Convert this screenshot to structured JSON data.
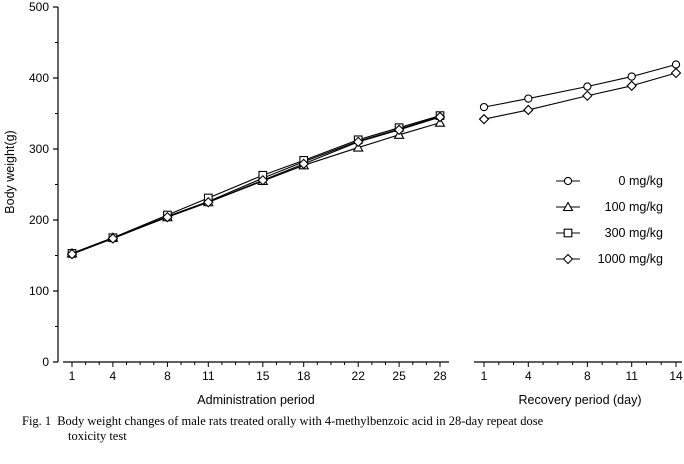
{
  "chart_data": {
    "type": "line",
    "ylabel": "Body weight(g)",
    "ylim": [
      0,
      500
    ],
    "yticks": [
      "0",
      "100",
      "200",
      "300",
      "400",
      "500"
    ],
    "grid": false,
    "legend_position": "right",
    "panels": [
      {
        "name": "administration",
        "xlabel": "Administration period",
        "x": [
          1,
          4,
          8,
          11,
          15,
          18,
          22,
          25,
          28
        ],
        "xticks": [
          "1",
          "4",
          "8",
          "11",
          "15",
          "18",
          "22",
          "25",
          "28"
        ],
        "xlim": [
          1,
          28
        ],
        "series": [
          {
            "name": "0 mg/kg",
            "marker": "circle",
            "values": [
              152,
              174,
              205,
              226,
              259,
              282,
              311,
              328,
              346
            ]
          },
          {
            "name": "100 mg/kg",
            "marker": "triangle",
            "values": [
              153,
              175,
              204,
              225,
              255,
              277,
              302,
              320,
              337
            ]
          },
          {
            "name": "300 mg/kg",
            "marker": "square",
            "values": [
              153,
              175,
              207,
              231,
              263,
              284,
              313,
              330,
              347
            ]
          },
          {
            "name": "1000 mg/kg",
            "marker": "diamond",
            "values": [
              152,
              174,
              204,
              225,
              256,
              279,
              310,
              327,
              345
            ]
          }
        ]
      },
      {
        "name": "recovery",
        "xlabel": "Recovery period (day)",
        "x": [
          1,
          4,
          8,
          11,
          14
        ],
        "xticks": [
          "1",
          "4",
          "8",
          "11",
          "14"
        ],
        "xlim": [
          1,
          14
        ],
        "series": [
          {
            "name": "0 mg/kg",
            "marker": "circle",
            "values": [
              359,
              371,
              388,
              402,
              419
            ]
          },
          {
            "name": "1000 mg/kg",
            "marker": "diamond",
            "values": [
              342,
              355,
              375,
              389,
              407
            ]
          }
        ]
      }
    ],
    "legend": [
      {
        "label": "0 mg/kg",
        "marker": "circle"
      },
      {
        "label": "100 mg/kg",
        "marker": "triangle"
      },
      {
        "label": "300 mg/kg",
        "marker": "square"
      },
      {
        "label": "1000 mg/kg",
        "marker": "diamond"
      }
    ]
  },
  "caption": {
    "fig_label": "Fig. 1",
    "line1": "Body weight changes of male rats treated orally with 4-methylbenzoic acid in 28-day repeat dose",
    "line2": "toxicity test"
  }
}
